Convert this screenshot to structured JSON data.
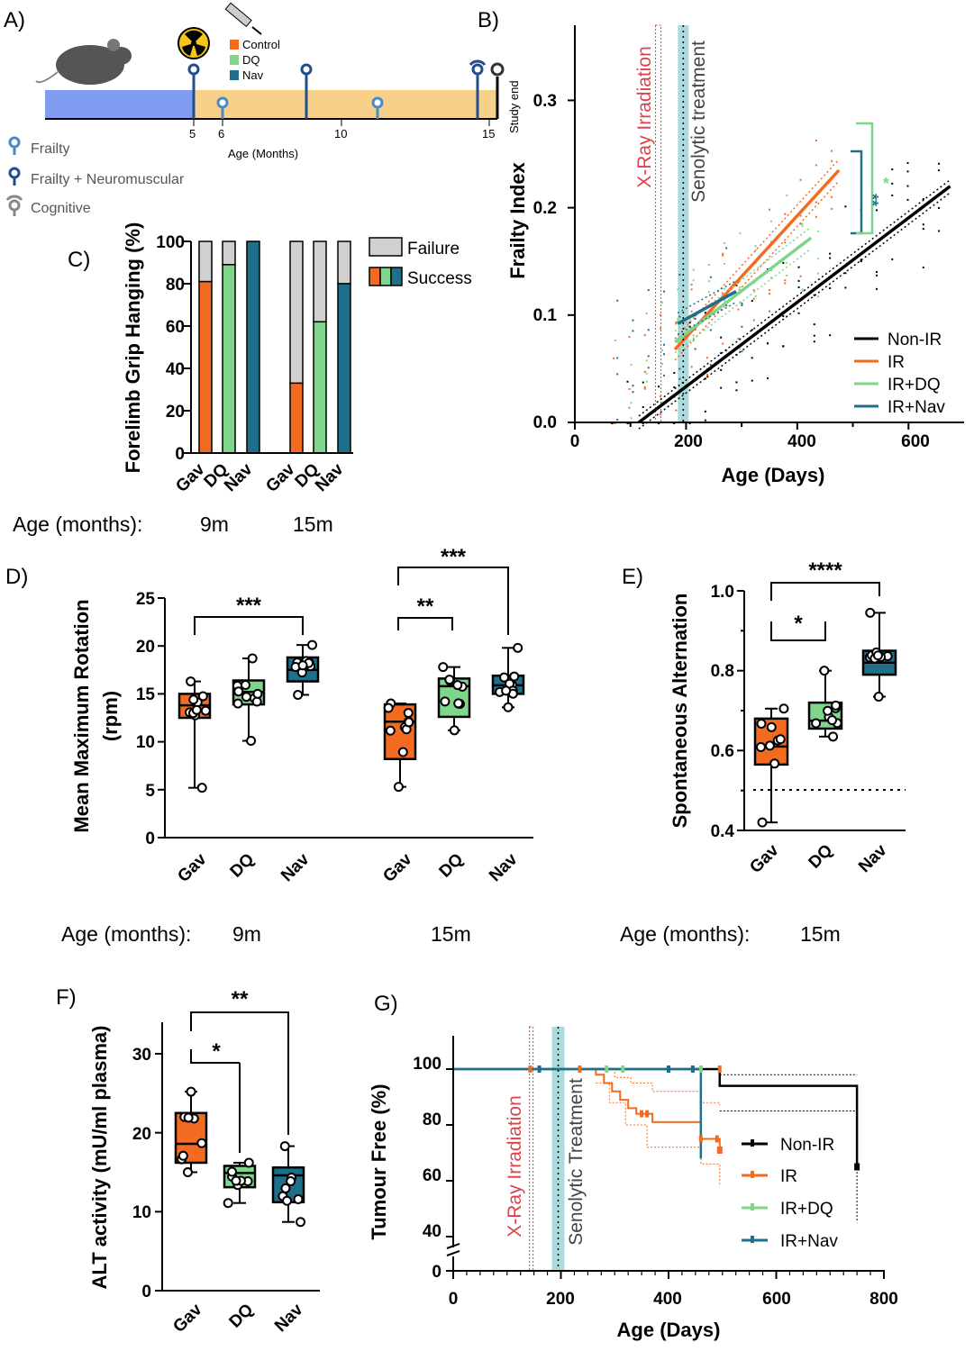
{
  "colors": {
    "gav": "#f26b21",
    "dq": "#7ed68a",
    "nav": "#1f6f8b",
    "nonir": "#000000",
    "fail": "#d0d0d0",
    "irr": "#e0404a",
    "sen": "#8fcfd0",
    "bar": "#f7d08a",
    "blue": "#7f9cf0"
  },
  "panels": {
    "a": "A)",
    "b": "B)",
    "c": "C)",
    "d": "D)",
    "e": "E)",
    "f": "F)",
    "g": "G)"
  },
  "timeline": {
    "ticks": [
      "5",
      "6",
      "10",
      "15"
    ],
    "xlabel": "Age (Months)",
    "study_end": "Study end",
    "treat_legend": [
      "Control",
      "DQ",
      "Nav"
    ],
    "legend": [
      "Frailty",
      "Frailty + Neuromuscular",
      "Cognitive"
    ],
    "icons": [
      "mouse-icon",
      "radiation-icon",
      "syringe-icon"
    ]
  },
  "chart_data": [
    {
      "id": "B",
      "type": "line",
      "xlabel": "Age (Days)",
      "ylabel": "Frailty Index",
      "xlim": [
        0,
        700
      ],
      "ylim": [
        0,
        0.37
      ],
      "xticks": [
        "0",
        "200",
        "400",
        "600"
      ],
      "yticks": [
        "0.0",
        "0.1",
        "0.2",
        "0.3"
      ],
      "annotations": {
        "irradiation": "X-Ray Irradiation",
        "treatment": "Senolytic treatment",
        "sig1": "**",
        "sig2": "*"
      },
      "irradiation_day": 150,
      "treatment_day": 195,
      "series": [
        {
          "name": "Non-IR",
          "x": [
            115,
            675
          ],
          "y": [
            0.0,
            0.22
          ]
        },
        {
          "name": "IR",
          "x": [
            180,
            475
          ],
          "y": [
            0.068,
            0.235
          ]
        },
        {
          "name": "IR+DQ",
          "x": [
            180,
            425
          ],
          "y": [
            0.075,
            0.172
          ]
        },
        {
          "name": "IR+Nav",
          "x": [
            185,
            290
          ],
          "y": [
            0.092,
            0.122
          ]
        }
      ]
    },
    {
      "id": "C",
      "type": "bar",
      "stacked": true,
      "ylabel": "Forelimb Grip  Hanging (%)",
      "ylim": [
        0,
        100
      ],
      "yticks": [
        "0",
        "20",
        "40",
        "60",
        "80",
        "100"
      ],
      "age_label": "Age (months):",
      "groups": [
        {
          "label": "9m",
          "categories": [
            "Gav",
            "DQ",
            "Nav"
          ],
          "success": [
            81,
            89,
            100
          ]
        },
        {
          "label": "15m",
          "categories": [
            "Gav",
            "DQ",
            "Nav"
          ],
          "success": [
            33,
            62,
            80
          ]
        }
      ],
      "legend": [
        "Failure",
        "Success"
      ]
    },
    {
      "id": "D",
      "type": "box",
      "ylabel": "Mean Maximum Rotation",
      "yunit": "(rpm)",
      "ylim": [
        0,
        25
      ],
      "yticks": [
        "0",
        "5",
        "10",
        "15",
        "20",
        "25"
      ],
      "age_label": "Age (months):",
      "groups": [
        {
          "label": "9m",
          "categories": [
            "Gav",
            "DQ",
            "Nav"
          ],
          "boxes": [
            {
              "min": 5.2,
              "q1": 12.5,
              "med": 13.8,
              "q3": 15.0,
              "max": 16.3
            },
            {
              "min": 10.1,
              "q1": 13.9,
              "med": 15.2,
              "q3": 16.4,
              "max": 18.7
            },
            {
              "min": 14.9,
              "q1": 16.3,
              "med": 17.5,
              "q3": 18.8,
              "max": 20.1
            }
          ]
        },
        {
          "label": "15m",
          "categories": [
            "Gav",
            "DQ",
            "Nav"
          ],
          "boxes": [
            {
              "min": 5.3,
              "q1": 8.2,
              "med": 12.1,
              "q3": 13.9,
              "max": 14.0
            },
            {
              "min": 11.2,
              "q1": 12.6,
              "med": 15.8,
              "q3": 16.6,
              "max": 17.8
            },
            {
              "min": 13.6,
              "q1": 15.0,
              "med": 15.9,
              "q3": 16.9,
              "max": 19.8
            }
          ]
        }
      ],
      "significance": [
        "***",
        "**",
        "***"
      ]
    },
    {
      "id": "E",
      "type": "box",
      "ylabel": "Spontaneous Alternation",
      "ylim": [
        0.4,
        1.0
      ],
      "yticks": [
        "0.4",
        "0.6",
        "0.8",
        "1.0"
      ],
      "age_label": "Age (months):",
      "group_label": "15m",
      "categories": [
        "Gav",
        "DQ",
        "Nav"
      ],
      "boxes": [
        {
          "min": 0.42,
          "q1": 0.565,
          "med": 0.61,
          "q3": 0.68,
          "max": 0.705
        },
        {
          "min": 0.635,
          "q1": 0.655,
          "med": 0.675,
          "q3": 0.72,
          "max": 0.8
        },
        {
          "min": 0.735,
          "q1": 0.79,
          "med": 0.82,
          "q3": 0.85,
          "max": 0.945
        }
      ],
      "chance": 0.5,
      "significance": [
        "*",
        "****"
      ]
    },
    {
      "id": "F",
      "type": "box",
      "ylabel": "ALT activity (mU/ml plasma)",
      "ylim": [
        0,
        32
      ],
      "yticks": [
        "0",
        "10",
        "20",
        "30"
      ],
      "categories": [
        "Gav",
        "DQ",
        "Nav"
      ],
      "boxes": [
        {
          "min": 15.0,
          "q1": 16.2,
          "med": 18.6,
          "q3": 22.5,
          "max": 25.2
        },
        {
          "min": 11.1,
          "q1": 13.1,
          "med": 14.9,
          "q3": 15.8,
          "max": 16.2
        },
        {
          "min": 8.7,
          "q1": 11.2,
          "med": 14.6,
          "q3": 15.6,
          "max": 18.3
        }
      ],
      "significance": [
        "*",
        "**"
      ]
    },
    {
      "id": "G",
      "type": "line",
      "subtype": "kaplan-meier",
      "xlabel": "Age (Days)",
      "ylabel": "Tumour Free (%)",
      "xlim": [
        0,
        800
      ],
      "xticks": [
        "0",
        "200",
        "400",
        "600",
        "800"
      ],
      "yticks": [
        "0",
        "40",
        "60",
        "80",
        "100"
      ],
      "annotations": {
        "irradiation": "X-Ray Irradiation",
        "treatment": "Senolytic Treatment"
      },
      "irradiation_day": 145,
      "treatment_day": 195,
      "series": [
        {
          "name": "Non-IR",
          "x": [
            0,
            495,
            495,
            750,
            750
          ],
          "y": [
            100,
            100,
            94,
            94,
            65
          ]
        },
        {
          "name": "IR",
          "x": [
            0,
            265,
            280,
            295,
            310,
            325,
            340,
            370,
            460,
            460,
            495
          ],
          "y": [
            100,
            98,
            95,
            92,
            89,
            86,
            84,
            81,
            81,
            75,
            71
          ]
        },
        {
          "name": "IR+DQ",
          "x": [
            0,
            440
          ],
          "y": [
            100,
            100
          ]
        },
        {
          "name": "IR+Nav",
          "x": [
            0,
            460,
            460
          ],
          "y": [
            100,
            100,
            68
          ]
        }
      ]
    }
  ]
}
